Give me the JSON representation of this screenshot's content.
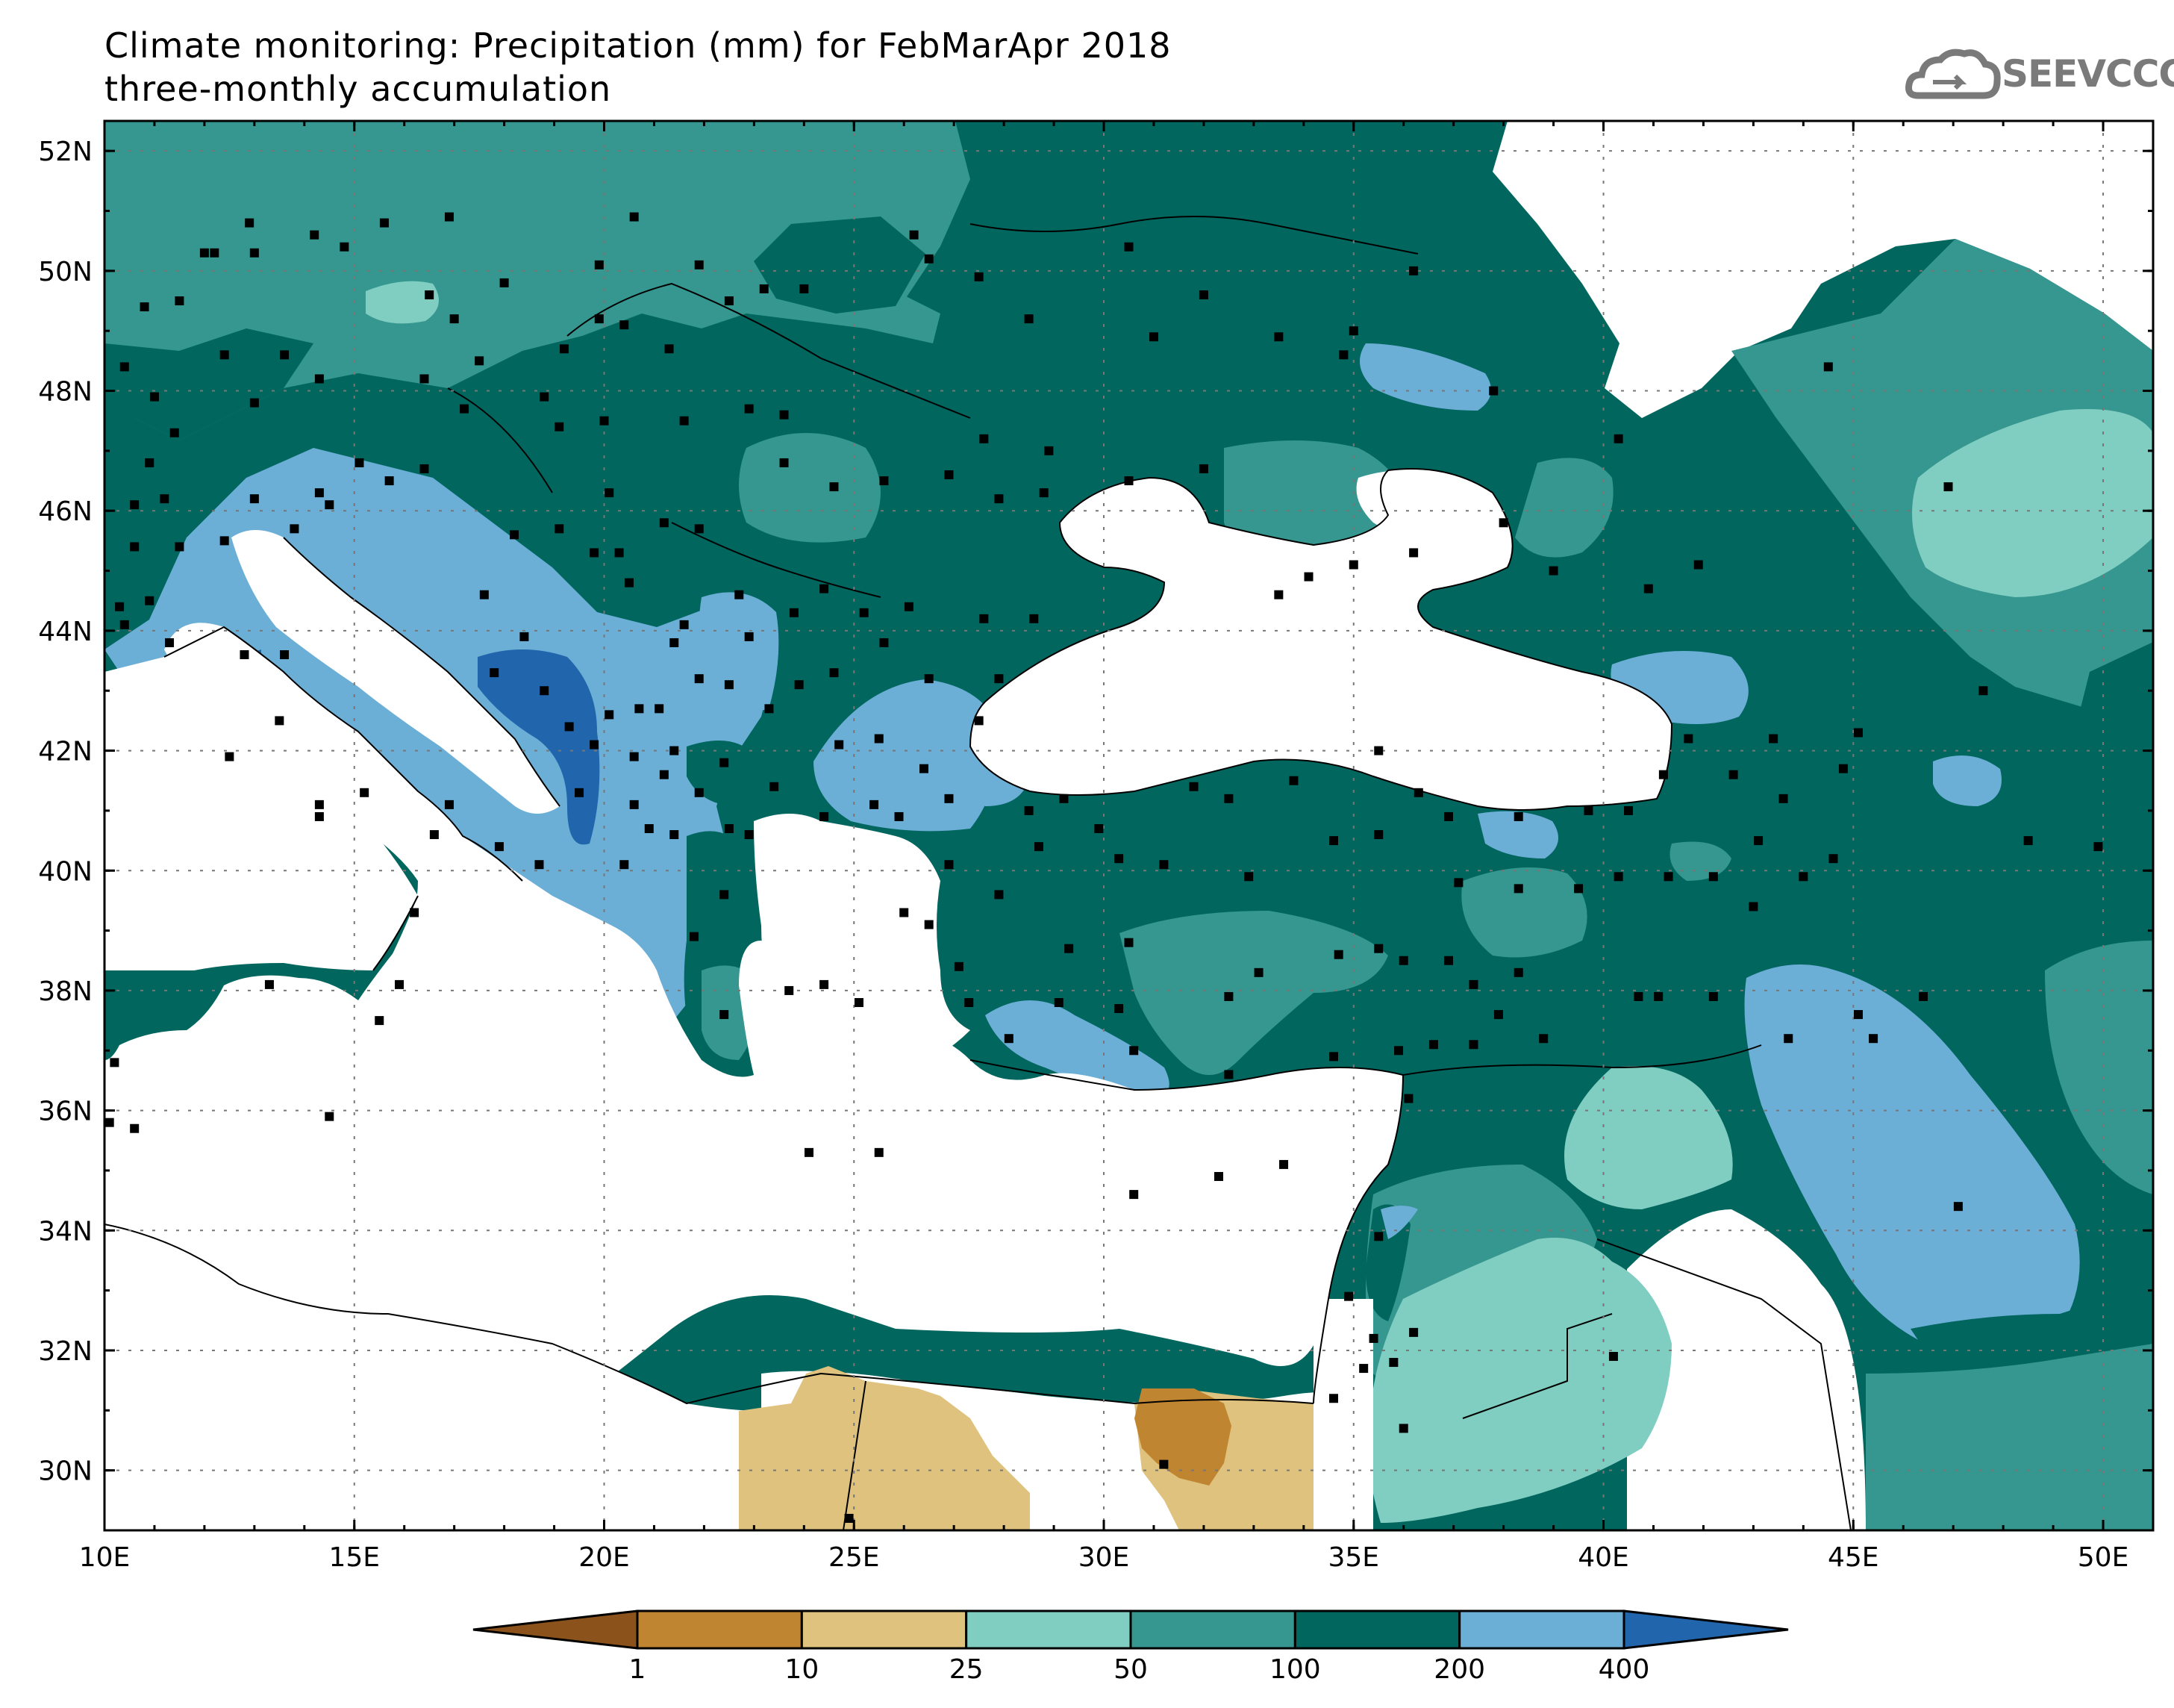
{
  "title": {
    "line1": "Climate monitoring: Precipitation (mm) for FebMarApr 2018",
    "line2": "three-monthly accumulation"
  },
  "logo": {
    "text": "SEEVCCC",
    "icon": "cloud-arrow-icon"
  },
  "map": {
    "lon_range": [
      10,
      51
    ],
    "lat_range": [
      29,
      52.5
    ],
    "lon_ticks": [
      "10E",
      "15E",
      "20E",
      "25E",
      "30E",
      "35E",
      "40E",
      "45E",
      "50E"
    ],
    "lat_ticks": [
      "52N",
      "50N",
      "48N",
      "46N",
      "44N",
      "42N",
      "40N",
      "38N",
      "36N",
      "34N",
      "32N",
      "30N"
    ],
    "grid": "dotted"
  },
  "colorbar": {
    "labels": [
      "1",
      "10",
      "25",
      "50",
      "100",
      "200",
      "400"
    ],
    "colors": [
      "#8b531b",
      "#bf8530",
      "#dfc27d",
      "#80cdc1",
      "#35978f",
      "#01665e",
      "#6baed6",
      "#2166ac"
    ]
  },
  "colors": {
    "lt1": "#8b531b",
    "c1_10": "#bf8530",
    "c10_25": "#dfc27d",
    "c25_50": "#80cdc1",
    "c50_100": "#35978f",
    "c100_200": "#01665e",
    "c200_400": "#6baed6",
    "gt400": "#2166ac"
  }
}
